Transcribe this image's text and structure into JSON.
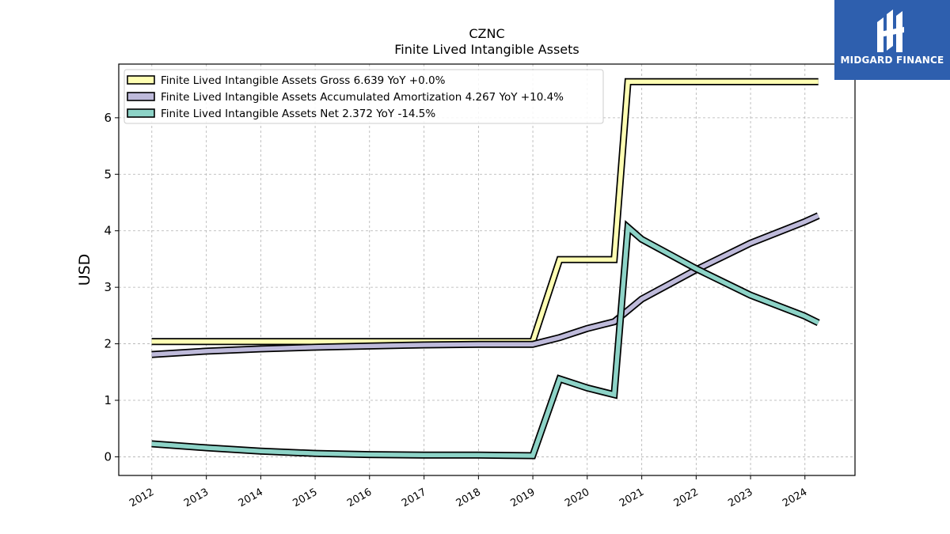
{
  "chart_data": {
    "type": "line",
    "title": "CZNC",
    "subtitle": "Finite Lived Intangible Assets",
    "ylabel": "USD",
    "xlabel": "",
    "ylim": [
      -0.33,
      6.95
    ],
    "xlim": [
      "2011-05-24",
      "2024-12-02"
    ],
    "yticks": [
      0,
      1,
      2,
      3,
      4,
      5,
      6
    ],
    "xticks": [
      "2012",
      "2013",
      "2014",
      "2015",
      "2016",
      "2017",
      "2018",
      "2019",
      "2020",
      "2021",
      "2022",
      "2023",
      "2024"
    ],
    "grid": true,
    "legend": "top-left",
    "series": [
      {
        "name": "Finite Lived Intangible Assets Gross",
        "legend_label": "Finite Lived Intangible Assets Gross  6.639 YoY +0.0%",
        "color": "#ffffb3",
        "points": [
          [
            "2011-12-31",
            2.04
          ],
          [
            "2018-12-31",
            2.04
          ],
          [
            "2019-06-30",
            3.49
          ],
          [
            "2020-06-30",
            3.49
          ],
          [
            "2020-09-30",
            6.639
          ],
          [
            "2024-03-31",
            6.639
          ]
        ]
      },
      {
        "name": "Finite Lived Intangible Assets Accumulated Amortization",
        "legend_label": "Finite Lived Intangible Assets Accumulated Amortization  4.267 YoY +10.4%",
        "color": "#bebada",
        "points": [
          [
            "2011-12-31",
            1.81
          ],
          [
            "2012-12-31",
            1.87
          ],
          [
            "2013-12-31",
            1.91
          ],
          [
            "2014-12-31",
            1.94
          ],
          [
            "2015-12-31",
            1.96
          ],
          [
            "2016-12-31",
            1.98
          ],
          [
            "2017-12-31",
            1.99
          ],
          [
            "2018-12-31",
            1.99
          ],
          [
            "2019-06-30",
            2.11
          ],
          [
            "2019-12-31",
            2.27
          ],
          [
            "2020-06-30",
            2.39
          ],
          [
            "2020-12-31",
            2.79
          ],
          [
            "2021-12-31",
            3.31
          ],
          [
            "2022-12-31",
            3.78
          ],
          [
            "2023-12-31",
            4.16
          ],
          [
            "2024-03-31",
            4.267
          ]
        ]
      },
      {
        "name": "Finite Lived Intangible Assets Net",
        "legend_label": "Finite Lived Intangible Assets Net  2.372 YoY -14.5%",
        "color": "#8dd3c7",
        "points": [
          [
            "2011-12-31",
            0.23
          ],
          [
            "2012-12-31",
            0.16
          ],
          [
            "2013-12-31",
            0.1
          ],
          [
            "2014-12-31",
            0.06
          ],
          [
            "2015-12-31",
            0.04
          ],
          [
            "2016-12-31",
            0.03
          ],
          [
            "2017-12-31",
            0.03
          ],
          [
            "2018-12-31",
            0.02
          ],
          [
            "2019-06-30",
            1.38
          ],
          [
            "2019-12-31",
            1.22
          ],
          [
            "2020-06-30",
            1.1
          ],
          [
            "2020-09-30",
            4.06
          ],
          [
            "2020-12-31",
            3.85
          ],
          [
            "2021-12-31",
            3.33
          ],
          [
            "2022-12-31",
            2.86
          ],
          [
            "2023-12-31",
            2.49
          ],
          [
            "2024-03-31",
            2.372
          ]
        ]
      }
    ]
  },
  "logo": {
    "text": "MIDGARD FINANCE",
    "icon": "midgard-logo-icon",
    "background": "#2e5fae"
  }
}
